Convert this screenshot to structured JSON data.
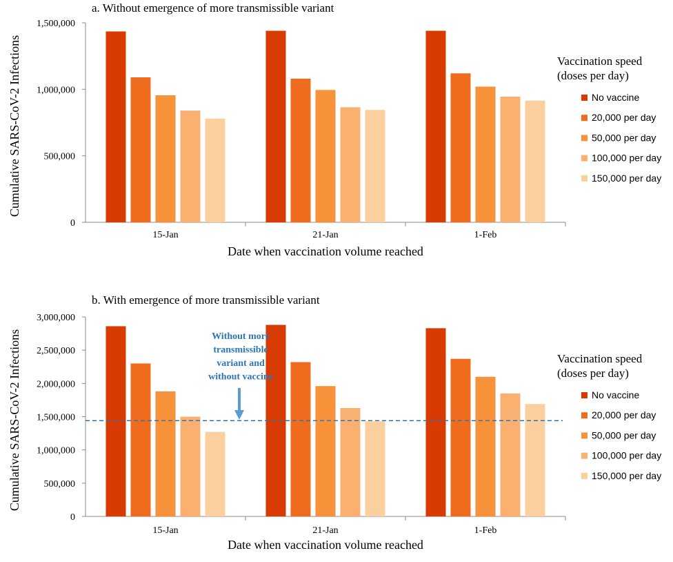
{
  "chart_data": [
    {
      "type": "bar",
      "title": "a. Without emergence of more transmissible variant",
      "xlabel": "Date when vaccination volume reached",
      "ylabel": "Cumulative SARS-CoV-2 Infections",
      "ylim": [
        0,
        1500000
      ],
      "yticks": [
        "0",
        "500,000",
        "1,000,000",
        "1,500,000"
      ],
      "categories": [
        "15-Jan",
        "21-Jan",
        "1-Feb"
      ],
      "legend_title": [
        "Vaccination speed",
        "(doses per day)"
      ],
      "legend_position": "right",
      "series": [
        {
          "name": "No vaccine",
          "color": "#d83b01",
          "values": [
            1435000,
            1440000,
            1440000
          ]
        },
        {
          "name": "20,000 per day",
          "color": "#ef6c1f",
          "values": [
            1090000,
            1080000,
            1120000
          ]
        },
        {
          "name": "50,000 per day",
          "color": "#f7923b",
          "values": [
            955000,
            995000,
            1020000
          ]
        },
        {
          "name": "100,000 per day",
          "color": "#f9b070",
          "values": [
            840000,
            865000,
            945000
          ]
        },
        {
          "name": "150,000 per day",
          "color": "#fbcf9e",
          "values": [
            780000,
            845000,
            915000
          ]
        }
      ]
    },
    {
      "type": "bar",
      "title": "b. With emergence of more transmissible variant",
      "xlabel": "Date when vaccination volume reached",
      "ylabel": "Cumulative SARS-CoV-2 Infections",
      "ylim": [
        0,
        3000000
      ],
      "yticks": [
        "0",
        "500,000",
        "1,000,000",
        "1,500,000",
        "2,000,000",
        "2,500,000",
        "3,000,000"
      ],
      "categories": [
        "15-Jan",
        "21-Jan",
        "1-Feb"
      ],
      "legend_title": [
        "Vaccination speed",
        "(doses per day)"
      ],
      "legend_position": "right",
      "series": [
        {
          "name": "No vaccine",
          "color": "#d83b01",
          "values": [
            2860000,
            2880000,
            2830000
          ]
        },
        {
          "name": "20,000 per day",
          "color": "#ef6c1f",
          "values": [
            2300000,
            2320000,
            2370000
          ]
        },
        {
          "name": "50,000 per day",
          "color": "#f7923b",
          "values": [
            1880000,
            1960000,
            2100000
          ]
        },
        {
          "name": "100,000 per day",
          "color": "#f9b070",
          "values": [
            1500000,
            1630000,
            1850000
          ]
        },
        {
          "name": "150,000 per day",
          "color": "#fbcf9e",
          "values": [
            1270000,
            1430000,
            1690000
          ]
        }
      ],
      "reference_line": {
        "value": 1440000,
        "color": "#2e75b6",
        "annotation": [
          "Without more",
          "transmissible",
          "variant and",
          "without vaccine"
        ]
      }
    }
  ]
}
